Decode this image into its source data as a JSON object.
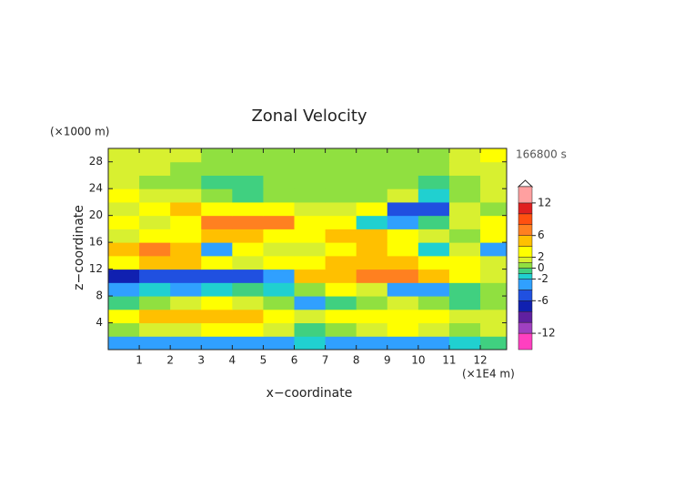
{
  "chart_data": {
    "type": "contour",
    "title": "Zonal Velocity",
    "x_label": "x−coordinate",
    "y_label": "z−coordinate",
    "x_unit": "(×1E4 m)",
    "y_unit": "(×1000 m)",
    "time_label": "166800 s",
    "xlim": [
      0,
      12.85
    ],
    "ylim": [
      0,
      30
    ],
    "xticks": [
      1,
      2,
      3,
      4,
      5,
      6,
      7,
      8,
      9,
      10,
      11,
      12
    ],
    "yticks": [
      4,
      8,
      12,
      16,
      20,
      24,
      28
    ],
    "x": [
      0.5,
      1.5,
      2.5,
      3.5,
      4.5,
      5.5,
      6.5,
      7.5,
      8.5,
      9.5,
      10.5,
      11.5,
      12.5
    ],
    "z": [
      1,
      3,
      5,
      7,
      9,
      11,
      13,
      15,
      17,
      19,
      21,
      23,
      25,
      27,
      29
    ],
    "values": [
      [
        -3,
        -3,
        -4,
        -4,
        -3,
        -3,
        -2,
        -3,
        -4,
        -3,
        -3,
        -2,
        -1
      ],
      [
        0,
        1,
        1,
        2,
        2,
        1,
        -1,
        0,
        1,
        2,
        1,
        0,
        1
      ],
      [
        3,
        4,
        5,
        4,
        4,
        3,
        1,
        2,
        3,
        2,
        2,
        1,
        1
      ],
      [
        -1,
        0,
        1,
        2,
        1,
        0,
        -3,
        -1,
        0,
        1,
        0,
        -1,
        0
      ],
      [
        -3,
        -2,
        -3,
        -2,
        -1,
        -2,
        0,
        2,
        1,
        -4,
        -3,
        -1,
        0
      ],
      [
        -7,
        -5,
        -5,
        -6,
        -5,
        -3,
        4,
        5,
        6,
        6,
        5,
        3,
        1
      ],
      [
        3,
        4,
        4,
        2,
        1,
        2,
        3,
        4,
        5,
        4,
        3,
        2,
        1
      ],
      [
        5,
        6,
        4,
        -3,
        2,
        1,
        1,
        3,
        4,
        3,
        -2,
        1,
        -3
      ],
      [
        1,
        2,
        3,
        4,
        5,
        3,
        2,
        4,
        5,
        3,
        1,
        0,
        2
      ],
      [
        2,
        1,
        3,
        6,
        7,
        6,
        3,
        2,
        -2,
        -4,
        -1,
        1,
        2
      ],
      [
        1,
        2,
        4,
        3,
        2,
        2,
        1,
        1,
        2,
        -5,
        -6,
        1,
        0
      ],
      [
        2,
        1,
        1,
        0,
        -1,
        0,
        0,
        0,
        0,
        1,
        -2,
        0,
        1
      ],
      [
        1,
        0,
        0,
        -1,
        -1,
        0,
        0,
        0,
        0,
        0,
        -1,
        0,
        1
      ],
      [
        1,
        1,
        0,
        0,
        0,
        0,
        0,
        0,
        0,
        0,
        0,
        1,
        1
      ],
      [
        1,
        1,
        1,
        0,
        0,
        0,
        0,
        0,
        0,
        0,
        0,
        1,
        2
      ]
    ],
    "levels": [
      -15,
      -12,
      -10,
      -8,
      -6,
      -4,
      -2,
      -1,
      0,
      1,
      2,
      4,
      6,
      8,
      10,
      12,
      15
    ],
    "colors": [
      "#ff40c0",
      "#a040c0",
      "#6020a0",
      "#1020b0",
      "#2050e0",
      "#30a0ff",
      "#20d0d0",
      "#40d080",
      "#90e040",
      "#d8f030",
      "#ffff00",
      "#ffc000",
      "#ff8020",
      "#ff5010",
      "#e02020",
      "#ffa0a0"
    ],
    "colorbar_ticks": [
      12,
      6,
      2,
      0,
      -2,
      -6,
      -12
    ]
  }
}
